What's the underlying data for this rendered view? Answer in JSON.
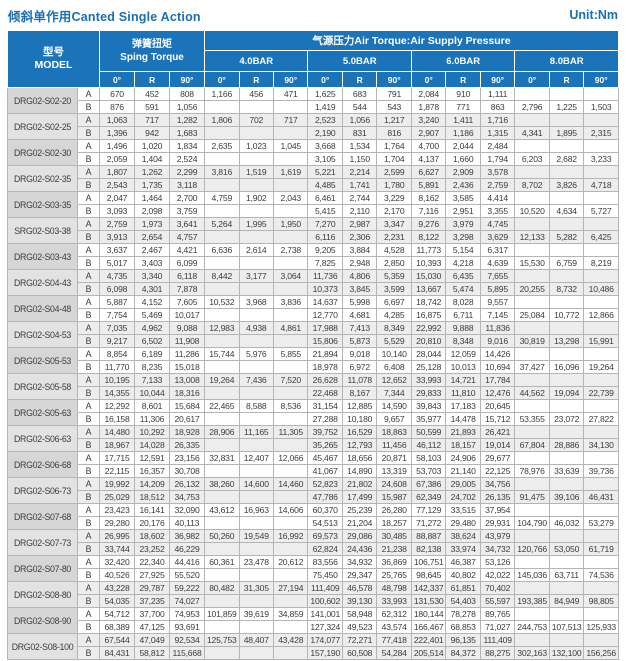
{
  "page": {
    "title": "倾斜单作用Canted Single Action",
    "unit": "Unit:Nm"
  },
  "table": {
    "model_header": "型号\nMODEL",
    "spring_header": "弹簧扭矩\nSping Torque",
    "air_header": "气源压力Air Torque:Air Supply Pressure",
    "pressures": [
      "4.0BAR",
      "5.0BAR",
      "6.0BAR",
      "8.0BAR"
    ],
    "angles": [
      "0°",
      "R",
      "90°"
    ],
    "row_labels": [
      "A",
      "B"
    ]
  },
  "groups": [
    {
      "model": "DRG02-S02-20",
      "a": [
        "670",
        "452",
        "808",
        "1,166",
        "456",
        "471",
        "1,625",
        "683",
        "791",
        "2,084",
        "910",
        "1,111",
        "",
        "",
        ""
      ],
      "b": [
        "876",
        "591",
        "1,056",
        "",
        "",
        "",
        "1,419",
        "544",
        "543",
        "1,878",
        "771",
        "863",
        "2,796",
        "1,225",
        "1,503"
      ]
    },
    {
      "model": "DRG02-S02-25",
      "a": [
        "1,063",
        "717",
        "1,282",
        "1,806",
        "702",
        "717",
        "2,523",
        "1,056",
        "1,217",
        "3,240",
        "1,411",
        "1,716",
        "",
        "",
        ""
      ],
      "b": [
        "1,396",
        "942",
        "1,683",
        "",
        "",
        "",
        "2,190",
        "831",
        "816",
        "2,907",
        "1,186",
        "1,315",
        "4,341",
        "1,895",
        "2,315"
      ]
    },
    {
      "model": "DRG02-S02-30",
      "a": [
        "1,496",
        "1,020",
        "1,834",
        "2,635",
        "1,023",
        "1,045",
        "3,668",
        "1,534",
        "1,764",
        "4,700",
        "2,044",
        "2,484",
        "",
        "",
        ""
      ],
      "b": [
        "2,059",
        "1,404",
        "2,524",
        "",
        "",
        "",
        "3,105",
        "1,150",
        "1,704",
        "4,137",
        "1,660",
        "1,794",
        "6,203",
        "2,682",
        "3,233"
      ]
    },
    {
      "model": "DRG02-S02-35",
      "a": [
        "1,807",
        "1,262",
        "2,299",
        "3,816",
        "1,519",
        "1,619",
        "5,221",
        "2,214",
        "2,599",
        "6,627",
        "2,909",
        "3,578",
        "",
        "",
        ""
      ],
      "b": [
        "2,543",
        "1,735",
        "3,118",
        "",
        "",
        "",
        "4,485",
        "1,741",
        "1,780",
        "5,891",
        "2,436",
        "2,759",
        "8,702",
        "3,826",
        "4,718"
      ]
    },
    {
      "model": "DRG02-S03-35",
      "a": [
        "2,047",
        "1,464",
        "2,700",
        "4,759",
        "1,902",
        "2,043",
        "6,461",
        "2,744",
        "3,229",
        "8,162",
        "3,585",
        "4,414",
        "",
        "",
        ""
      ],
      "b": [
        "3,093",
        "2,098",
        "3,759",
        "",
        "",
        "",
        "5,415",
        "2,110",
        "2,170",
        "7,116",
        "2,951",
        "3,355",
        "10,520",
        "4,634",
        "5,727"
      ]
    },
    {
      "model": "SRG02-S03-38",
      "a": [
        "2,759",
        "1,973",
        "3,641",
        "5,264",
        "1,995",
        "1,950",
        "7,270",
        "2,987",
        "3,347",
        "9,276",
        "3,979",
        "4,745",
        "",
        "",
        ""
      ],
      "b": [
        "3,913",
        "2,654",
        "4,757",
        "",
        "",
        "",
        "6,116",
        "2,306",
        "2,231",
        "8,122",
        "3,298",
        "3,629",
        "12,133",
        "5,282",
        "6,425"
      ]
    },
    {
      "model": "DRG02-S03-43",
      "a": [
        "3,637",
        "2,467",
        "4,421",
        "6,636",
        "2,614",
        "2,738",
        "9,205",
        "3,884",
        "4,528",
        "11,773",
        "5,154",
        "6,317",
        "",
        "",
        ""
      ],
      "b": [
        "5,017",
        "3,403",
        "6,099",
        "",
        "",
        "",
        "7,825",
        "2,948",
        "2,850",
        "10,393",
        "4,218",
        "4,639",
        "15,530",
        "6,759",
        "8,219"
      ]
    },
    {
      "model": "DRG02-S04-43",
      "a": [
        "4,735",
        "3,340",
        "6,118",
        "8,442",
        "3,177",
        "3,064",
        "11,736",
        "4,806",
        "5,359",
        "15,030",
        "6,435",
        "7,655",
        "",
        "",
        ""
      ],
      "b": [
        "6,098",
        "4,301",
        "7,878",
        "",
        "",
        "",
        "10,373",
        "3,845",
        "3,599",
        "13,667",
        "5,474",
        "5,895",
        "20,255",
        "8,732",
        "10,486"
      ]
    },
    {
      "model": "DRG02-S04-48",
      "a": [
        "5,887",
        "4,152",
        "7,605",
        "10,532",
        "3,968",
        "3,836",
        "14,637",
        "5,998",
        "6,697",
        "18,742",
        "8,028",
        "9,557",
        "",
        "",
        ""
      ],
      "b": [
        "7,754",
        "5,469",
        "10,017",
        "",
        "",
        "",
        "12,770",
        "4,681",
        "4,285",
        "16,875",
        "6,711",
        "7,145",
        "25,084",
        "10,772",
        "12,866"
      ]
    },
    {
      "model": "DRG02-S04-53",
      "a": [
        "7,035",
        "4,962",
        "9,088",
        "12,983",
        "4,938",
        "4,861",
        "17,988",
        "7,413",
        "8,349",
        "22,992",
        "9,888",
        "11,836",
        "",
        "",
        ""
      ],
      "b": [
        "9,217",
        "6,502",
        "11,908",
        "",
        "",
        "",
        "15,806",
        "5,873",
        "5,529",
        "20,810",
        "8,348",
        "9,016",
        "30,819",
        "13,298",
        "15,991"
      ]
    },
    {
      "model": "DRG02-S05-53",
      "a": [
        "8,854",
        "6,189",
        "11,286",
        "15,744",
        "5,976",
        "5,855",
        "21,894",
        "9,018",
        "10,140",
        "28,044",
        "12,059",
        "14,426",
        "",
        "",
        ""
      ],
      "b": [
        "11,770",
        "8,235",
        "15,018",
        "",
        "",
        "",
        "18,978",
        "6,972",
        "6,408",
        "25,128",
        "10,013",
        "10,694",
        "37,427",
        "16,096",
        "19,264"
      ]
    },
    {
      "model": "DRG02-S05-58",
      "a": [
        "10,195",
        "7,133",
        "13,008",
        "19,264",
        "7,436",
        "7,520",
        "26,628",
        "11,078",
        "12,652",
        "33,993",
        "14,721",
        "17,784",
        "",
        "",
        ""
      ],
      "b": [
        "14,355",
        "10,044",
        "18,316",
        "",
        "",
        "",
        "22,468",
        "8,167",
        "7,344",
        "29,833",
        "11,810",
        "12,476",
        "44,562",
        "19,094",
        "22,739"
      ]
    },
    {
      "model": "DRG02-S05-63",
      "a": [
        "12,292",
        "8,601",
        "15,684",
        "22,465",
        "8,588",
        "8,536",
        "31,154",
        "12,885",
        "14,590",
        "39,843",
        "17,183",
        "20,645",
        "",
        "",
        ""
      ],
      "b": [
        "16,158",
        "11,306",
        "20,617",
        "",
        "",
        "",
        "27,288",
        "10,180",
        "9,657",
        "35,977",
        "14,478",
        "15,712",
        "53,355",
        "23,072",
        "27,822"
      ]
    },
    {
      "model": "DRG02-S06-63",
      "a": [
        "14,480",
        "10,292",
        "18,928",
        "28,906",
        "11,165",
        "11,305",
        "39,752",
        "16,529",
        "18,863",
        "50,599",
        "21,893",
        "26,421",
        "",
        "",
        ""
      ],
      "b": [
        "18,967",
        "14,028",
        "26,335",
        "",
        "",
        "",
        "35,265",
        "12,793",
        "11,456",
        "46,112",
        "18,157",
        "19,014",
        "67,804",
        "28,886",
        "34,130"
      ]
    },
    {
      "model": "DRG02-S06-68",
      "a": [
        "17,715",
        "12,591",
        "23,156",
        "32,831",
        "12,407",
        "12,066",
        "45,467",
        "18,656",
        "20,871",
        "58,103",
        "24,906",
        "29,677",
        "",
        "",
        ""
      ],
      "b": [
        "22,115",
        "16,357",
        "30,708",
        "",
        "",
        "",
        "41,067",
        "14,890",
        "13,319",
        "53,703",
        "21,140",
        "22,125",
        "78,976",
        "33,639",
        "39,736"
      ]
    },
    {
      "model": "DRG02-S06-73",
      "a": [
        "19,992",
        "14,209",
        "26,132",
        "38,260",
        "14,600",
        "14,460",
        "52,823",
        "21,802",
        "24,608",
        "67,386",
        "29,005",
        "34,756",
        "",
        "",
        ""
      ],
      "b": [
        "25,029",
        "18,512",
        "34,753",
        "",
        "",
        "",
        "47,786",
        "17,499",
        "15,987",
        "62,349",
        "24,702",
        "26,135",
        "91,475",
        "39,106",
        "46,431"
      ]
    },
    {
      "model": "DRG02-S07-68",
      "a": [
        "23,423",
        "16,141",
        "32,090",
        "43,612",
        "16,963",
        "14,606",
        "60,370",
        "25,239",
        "26,280",
        "77,129",
        "33,515",
        "37,954",
        "",
        "",
        ""
      ],
      "b": [
        "29,280",
        "20,176",
        "40,113",
        "",
        "",
        "",
        "54,513",
        "21,204",
        "18,257",
        "71,272",
        "29,480",
        "29,931",
        "104,790",
        "46,032",
        "53,279"
      ]
    },
    {
      "model": "DRG02-S07-73",
      "a": [
        "26,995",
        "18,602",
        "36,982",
        "50,260",
        "19,549",
        "16,992",
        "69,573",
        "29,086",
        "30,485",
        "88,887",
        "38,624",
        "43,979",
        "",
        "",
        ""
      ],
      "b": [
        "33,744",
        "23,252",
        "46,229",
        "",
        "",
        "",
        "62,824",
        "24,436",
        "21,238",
        "82,138",
        "33,974",
        "34,732",
        "120,766",
        "53,050",
        "61,719"
      ]
    },
    {
      "model": "DRG02-S07-80",
      "a": [
        "32,420",
        "22,340",
        "44,416",
        "60,361",
        "23,478",
        "20,612",
        "83,556",
        "34,932",
        "36,869",
        "106,751",
        "46,387",
        "53,126",
        "",
        "",
        ""
      ],
      "b": [
        "40,526",
        "27,925",
        "55,520",
        "",
        "",
        "",
        "75,450",
        "29,347",
        "25,765",
        "98,645",
        "40,802",
        "42,022",
        "145,036",
        "63,711",
        "74,536"
      ]
    },
    {
      "model": "DRG02-S08-80",
      "a": [
        "43,228",
        "29,787",
        "59,222",
        "80,482",
        "31,305",
        "27,194",
        "111,409",
        "46,578",
        "48,798",
        "142,337",
        "61,851",
        "70,402",
        "",
        "",
        ""
      ],
      "b": [
        "54,035",
        "37,235",
        "74,027",
        "",
        "",
        "",
        "100,602",
        "39,130",
        "33,993",
        "131,530",
        "54,403",
        "55,597",
        "193,385",
        "84,949",
        "98,805"
      ]
    },
    {
      "model": "DRG02-S08-90",
      "a": [
        "54,712",
        "37,700",
        "74,953",
        "101,859",
        "39,619",
        "34,859",
        "141,001",
        "58,948",
        "62,312",
        "180,144",
        "78,278",
        "89,765",
        "",
        "",
        ""
      ],
      "b": [
        "68,389",
        "47,125",
        "93,691",
        "",
        "",
        "",
        "127,324",
        "49,523",
        "43,574",
        "166,467",
        "68,853",
        "71,027",
        "244,753",
        "107,513",
        "125,933"
      ]
    },
    {
      "model": "DRG02-S08-100",
      "a": [
        "67,544",
        "47,049",
        "92,534",
        "125,753",
        "48,407",
        "43,428",
        "174,077",
        "72,271",
        "77,418",
        "222,401",
        "96,135",
        "111,409",
        "",
        "",
        ""
      ],
      "b": [
        "84,431",
        "58,812",
        "115,668",
        "",
        "",
        "",
        "157,190",
        "60,508",
        "54,284",
        "205,514",
        "84,372",
        "88,275",
        "302,163",
        "132,100",
        "156,256"
      ]
    }
  ]
}
